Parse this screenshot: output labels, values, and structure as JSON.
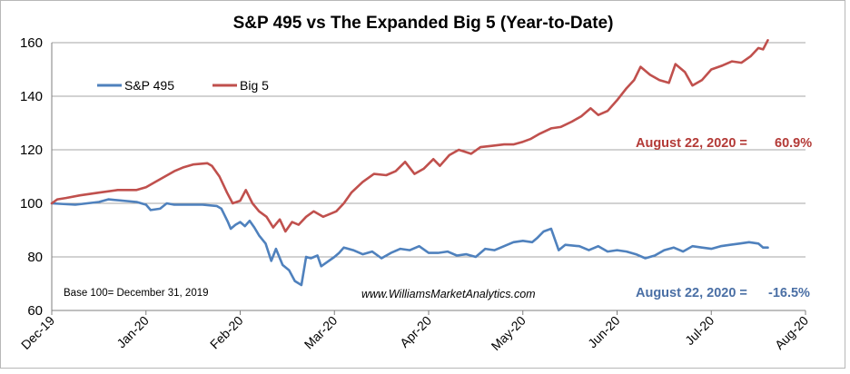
{
  "chart_data": {
    "type": "line",
    "title": "S&P 495 vs The Expanded Big 5 (Year-to-Date)",
    "xlabel": "",
    "ylabel": "",
    "ylim": [
      60,
      160
    ],
    "y_ticks": [
      "60",
      "80",
      "100",
      "120",
      "140",
      "160"
    ],
    "x_ticks": [
      "Dec-19",
      "Jan-20",
      "Feb-20",
      "Mar-20",
      "Apr-20",
      "May-20",
      "Jun-20",
      "Jul-20",
      "Aug-20"
    ],
    "grid": "horizontal",
    "legend_position": "top-left",
    "colors": {
      "sp495": "#4f81bd",
      "big5": "#c0504d"
    },
    "series": [
      {
        "name": "S&P 495",
        "points": [
          [
            0,
            100
          ],
          [
            0.25,
            99.5
          ],
          [
            0.5,
            100.5
          ],
          [
            0.6,
            101.5
          ],
          [
            0.9,
            100.5
          ],
          [
            1.0,
            99.5
          ],
          [
            1.05,
            97.5
          ],
          [
            1.15,
            98
          ],
          [
            1.22,
            100
          ],
          [
            1.3,
            99.5
          ],
          [
            1.5,
            99.5
          ],
          [
            1.6,
            99.5
          ],
          [
            1.75,
            99
          ],
          [
            1.8,
            98
          ],
          [
            1.87,
            93
          ],
          [
            1.9,
            90.5
          ],
          [
            1.95,
            92
          ],
          [
            2.0,
            93
          ],
          [
            2.05,
            91.5
          ],
          [
            2.1,
            93.5
          ],
          [
            2.15,
            91
          ],
          [
            2.2,
            88
          ],
          [
            2.27,
            85
          ],
          [
            2.33,
            78.5
          ],
          [
            2.38,
            83
          ],
          [
            2.45,
            77
          ],
          [
            2.52,
            75
          ],
          [
            2.58,
            71
          ],
          [
            2.65,
            69.5
          ],
          [
            2.7,
            80
          ],
          [
            2.75,
            79.5
          ],
          [
            2.82,
            80.5
          ],
          [
            2.86,
            76.5
          ],
          [
            2.92,
            78
          ],
          [
            3.0,
            80
          ],
          [
            3.05,
            81.5
          ],
          [
            3.1,
            83.5
          ],
          [
            3.2,
            82.5
          ],
          [
            3.3,
            81
          ],
          [
            3.4,
            82
          ],
          [
            3.5,
            79.5
          ],
          [
            3.6,
            81.5
          ],
          [
            3.7,
            83
          ],
          [
            3.8,
            82.5
          ],
          [
            3.9,
            84
          ],
          [
            4.0,
            81.5
          ],
          [
            4.1,
            81.5
          ],
          [
            4.2,
            82
          ],
          [
            4.3,
            80.5
          ],
          [
            4.4,
            81
          ],
          [
            4.5,
            80
          ],
          [
            4.6,
            83
          ],
          [
            4.7,
            82.5
          ],
          [
            4.8,
            84
          ],
          [
            4.9,
            85.5
          ],
          [
            5.0,
            86
          ],
          [
            5.1,
            85.5
          ],
          [
            5.15,
            87
          ],
          [
            5.22,
            89.5
          ],
          [
            5.3,
            90.5
          ],
          [
            5.38,
            82.5
          ],
          [
            5.45,
            84.5
          ],
          [
            5.6,
            84
          ],
          [
            5.7,
            82.5
          ],
          [
            5.8,
            84
          ],
          [
            5.9,
            82
          ],
          [
            6.0,
            82.5
          ],
          [
            6.1,
            82
          ],
          [
            6.2,
            81
          ],
          [
            6.3,
            79.5
          ],
          [
            6.4,
            80.5
          ],
          [
            6.5,
            82.5
          ],
          [
            6.6,
            83.5
          ],
          [
            6.7,
            82
          ],
          [
            6.8,
            84
          ],
          [
            6.9,
            83.5
          ],
          [
            7.0,
            83
          ],
          [
            7.1,
            84
          ],
          [
            7.2,
            84.5
          ],
          [
            7.3,
            85
          ],
          [
            7.4,
            85.5
          ],
          [
            7.5,
            85
          ],
          [
            7.55,
            83.5
          ],
          [
            7.6,
            83.5
          ]
        ]
      },
      {
        "name": "Big 5",
        "points": [
          [
            0,
            100
          ],
          [
            0.06,
            101.5
          ],
          [
            0.15,
            102
          ],
          [
            0.3,
            103
          ],
          [
            0.5,
            104
          ],
          [
            0.7,
            105
          ],
          [
            0.9,
            105
          ],
          [
            1.0,
            106
          ],
          [
            1.1,
            108
          ],
          [
            1.2,
            110
          ],
          [
            1.3,
            112
          ],
          [
            1.4,
            113.5
          ],
          [
            1.5,
            114.5
          ],
          [
            1.65,
            115
          ],
          [
            1.7,
            114
          ],
          [
            1.78,
            110
          ],
          [
            1.86,
            104
          ],
          [
            1.92,
            100
          ],
          [
            2.0,
            101
          ],
          [
            2.06,
            105
          ],
          [
            2.13,
            100
          ],
          [
            2.2,
            97
          ],
          [
            2.28,
            95
          ],
          [
            2.35,
            91
          ],
          [
            2.42,
            94
          ],
          [
            2.48,
            89.5
          ],
          [
            2.55,
            93
          ],
          [
            2.62,
            92
          ],
          [
            2.7,
            95
          ],
          [
            2.78,
            97
          ],
          [
            2.88,
            95
          ],
          [
            2.95,
            96
          ],
          [
            3.02,
            97
          ],
          [
            3.1,
            100
          ],
          [
            3.18,
            104
          ],
          [
            3.3,
            108
          ],
          [
            3.42,
            111
          ],
          [
            3.55,
            110.5
          ],
          [
            3.65,
            112
          ],
          [
            3.75,
            115.5
          ],
          [
            3.85,
            111
          ],
          [
            3.95,
            113
          ],
          [
            4.05,
            116.5
          ],
          [
            4.12,
            114
          ],
          [
            4.22,
            118
          ],
          [
            4.32,
            120
          ],
          [
            4.45,
            118.5
          ],
          [
            4.55,
            121
          ],
          [
            4.68,
            121.5
          ],
          [
            4.8,
            122
          ],
          [
            4.9,
            122
          ],
          [
            5.0,
            123
          ],
          [
            5.08,
            124
          ],
          [
            5.18,
            126
          ],
          [
            5.3,
            128
          ],
          [
            5.4,
            128.5
          ],
          [
            5.52,
            130.5
          ],
          [
            5.62,
            132.5
          ],
          [
            5.72,
            135.5
          ],
          [
            5.8,
            133
          ],
          [
            5.9,
            134.5
          ],
          [
            6.0,
            138.5
          ],
          [
            6.1,
            143
          ],
          [
            6.18,
            146
          ],
          [
            6.25,
            151
          ],
          [
            6.35,
            148
          ],
          [
            6.45,
            146
          ],
          [
            6.55,
            145
          ],
          [
            6.62,
            152
          ],
          [
            6.72,
            149
          ],
          [
            6.8,
            144
          ],
          [
            6.9,
            146
          ],
          [
            7.0,
            150
          ],
          [
            7.12,
            151.5
          ],
          [
            7.22,
            153
          ],
          [
            7.32,
            152.5
          ],
          [
            7.42,
            155
          ],
          [
            7.5,
            158
          ],
          [
            7.55,
            157.5
          ],
          [
            7.6,
            160.9
          ]
        ]
      }
    ],
    "annotations": {
      "big5_label": "August 22, 2020 =",
      "big5_value": "60.9%",
      "sp495_label": "August 22, 2020 =",
      "sp495_value": "-16.5%",
      "base_note": "Base 100= December 31, 2019",
      "website": "www.WilliamsMarketAnalytics.com"
    }
  }
}
